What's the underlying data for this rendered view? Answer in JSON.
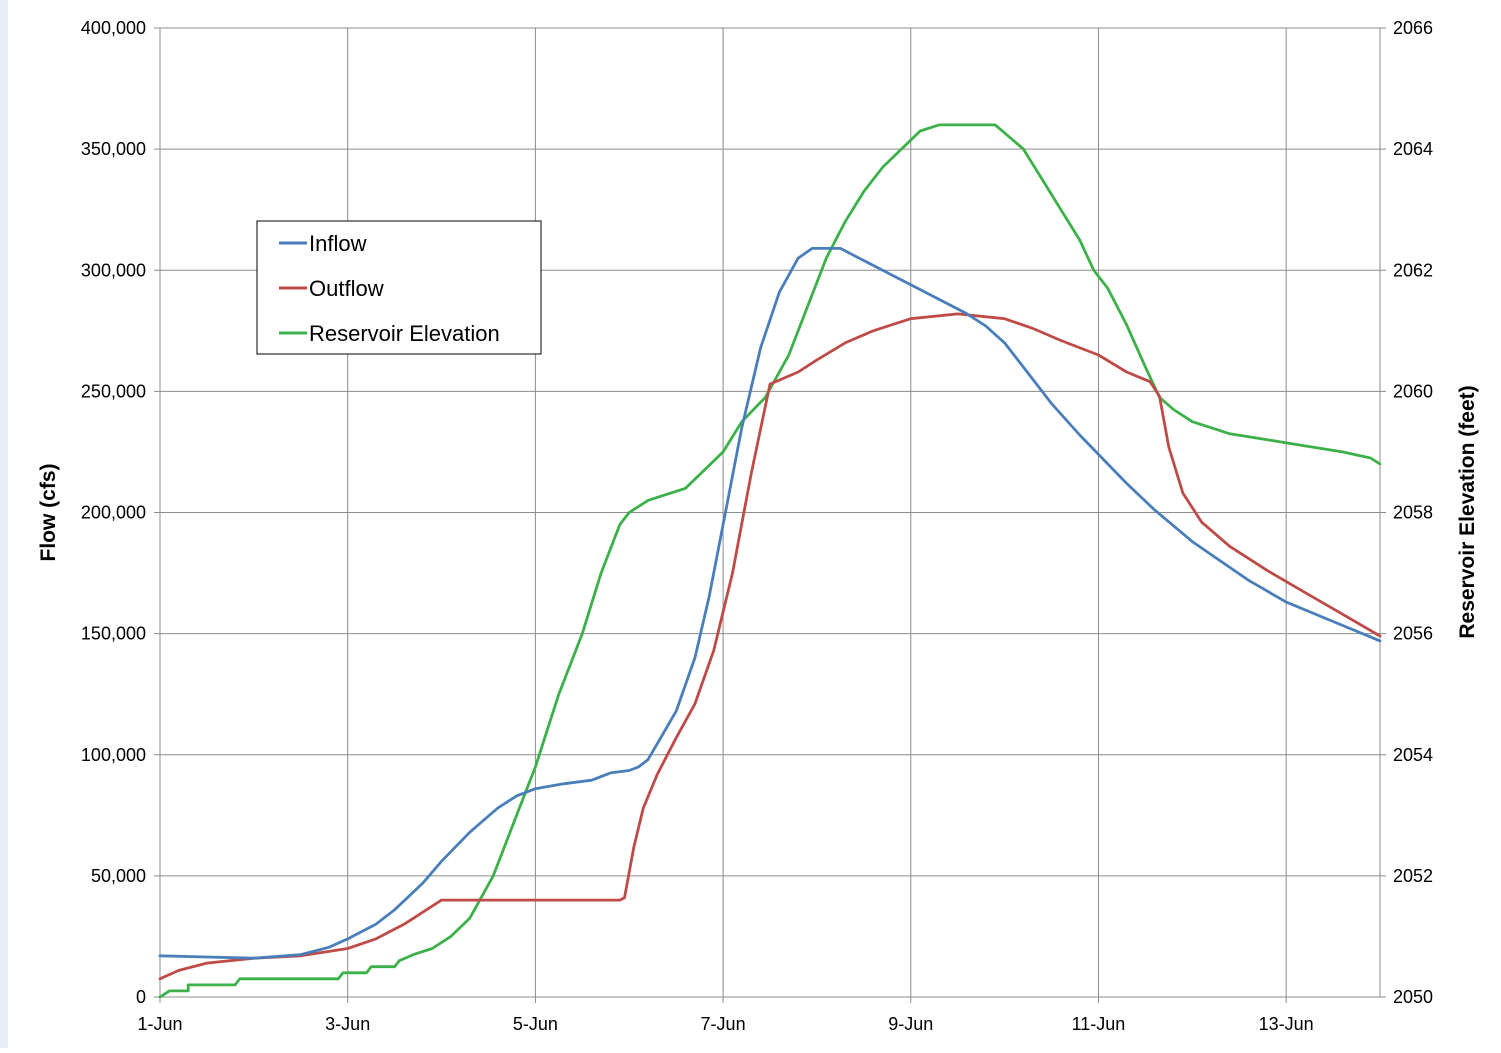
{
  "chart_data": {
    "type": "line",
    "title": "",
    "xlabel": "",
    "ylabel": "Flow (cfs)",
    "y2label": "Reservoir Elevation (feet)",
    "x_range": [
      1,
      14
    ],
    "ylim": [
      0,
      400000
    ],
    "y2lim": [
      2050,
      2066
    ],
    "x_ticks": [
      {
        "x": 1,
        "label": "1-Jun"
      },
      {
        "x": 3,
        "label": "3-Jun"
      },
      {
        "x": 5,
        "label": "5-Jun"
      },
      {
        "x": 7,
        "label": "7-Jun"
      },
      {
        "x": 9,
        "label": "9-Jun"
      },
      {
        "x": 11,
        "label": "11-Jun"
      },
      {
        "x": 13,
        "label": "13-Jun"
      }
    ],
    "y_ticks": [
      {
        "v": 0,
        "label": "0"
      },
      {
        "v": 50000,
        "label": "50,000"
      },
      {
        "v": 100000,
        "label": "100,000"
      },
      {
        "v": 150000,
        "label": "150,000"
      },
      {
        "v": 200000,
        "label": "200,000"
      },
      {
        "v": 250000,
        "label": "250,000"
      },
      {
        "v": 300000,
        "label": "300,000"
      },
      {
        "v": 350000,
        "label": "350,000"
      },
      {
        "v": 400000,
        "label": "400,000"
      }
    ],
    "y2_ticks": [
      {
        "v": 2050,
        "label": "2050"
      },
      {
        "v": 2052,
        "label": "2052"
      },
      {
        "v": 2054,
        "label": "2054"
      },
      {
        "v": 2056,
        "label": "2056"
      },
      {
        "v": 2058,
        "label": "2058"
      },
      {
        "v": 2060,
        "label": "2060"
      },
      {
        "v": 2062,
        "label": "2062"
      },
      {
        "v": 2064,
        "label": "2064"
      },
      {
        "v": 2066,
        "label": "2066"
      }
    ],
    "grid": true,
    "legend_position": "upper-left",
    "series": [
      {
        "name": "Inflow",
        "axis": "left",
        "color": "#4a7ebb",
        "points": [
          [
            1.0,
            17000
          ],
          [
            1.5,
            16500
          ],
          [
            2.0,
            16000
          ],
          [
            2.5,
            17500
          ],
          [
            2.8,
            20500
          ],
          [
            3.0,
            24000
          ],
          [
            3.3,
            30000
          ],
          [
            3.5,
            36000
          ],
          [
            3.8,
            47000
          ],
          [
            4.0,
            56000
          ],
          [
            4.3,
            68000
          ],
          [
            4.6,
            78000
          ],
          [
            4.8,
            83000
          ],
          [
            5.0,
            86000
          ],
          [
            5.3,
            88000
          ],
          [
            5.6,
            89500
          ],
          [
            5.8,
            92500
          ],
          [
            6.0,
            93500
          ],
          [
            6.1,
            95000
          ],
          [
            6.2,
            98000
          ],
          [
            6.35,
            108000
          ],
          [
            6.5,
            118000
          ],
          [
            6.7,
            140000
          ],
          [
            6.85,
            165000
          ],
          [
            7.0,
            195000
          ],
          [
            7.2,
            235000
          ],
          [
            7.4,
            268000
          ],
          [
            7.6,
            291000
          ],
          [
            7.8,
            305000
          ],
          [
            7.95,
            309000
          ],
          [
            8.1,
            309000
          ],
          [
            8.25,
            309000
          ],
          [
            8.4,
            306000
          ],
          [
            8.6,
            302000
          ],
          [
            8.8,
            298000
          ],
          [
            9.0,
            294000
          ],
          [
            9.3,
            288000
          ],
          [
            9.6,
            282000
          ],
          [
            9.8,
            277000
          ],
          [
            10.0,
            270000
          ],
          [
            10.2,
            260000
          ],
          [
            10.5,
            245000
          ],
          [
            10.8,
            232000
          ],
          [
            11.0,
            224000
          ],
          [
            11.3,
            212000
          ],
          [
            11.6,
            201000
          ],
          [
            12.0,
            188000
          ],
          [
            12.3,
            180000
          ],
          [
            12.6,
            172000
          ],
          [
            13.0,
            163000
          ],
          [
            13.5,
            155000
          ],
          [
            14.0,
            147000
          ]
        ]
      },
      {
        "name": "Outflow",
        "axis": "left",
        "color": "#be4b48",
        "points": [
          [
            1.0,
            7500
          ],
          [
            1.2,
            11000
          ],
          [
            1.5,
            14000
          ],
          [
            2.0,
            16000
          ],
          [
            2.5,
            17000
          ],
          [
            3.0,
            20000
          ],
          [
            3.3,
            24000
          ],
          [
            3.6,
            30000
          ],
          [
            3.8,
            35000
          ],
          [
            4.0,
            40000
          ],
          [
            5.0,
            40000
          ],
          [
            5.9,
            40000
          ],
          [
            5.95,
            41000
          ],
          [
            6.05,
            62000
          ],
          [
            6.15,
            78000
          ],
          [
            6.3,
            92000
          ],
          [
            6.5,
            107000
          ],
          [
            6.7,
            121000
          ],
          [
            6.9,
            143000
          ],
          [
            7.1,
            175000
          ],
          [
            7.3,
            216000
          ],
          [
            7.5,
            253000
          ],
          [
            7.8,
            258000
          ],
          [
            8.0,
            263000
          ],
          [
            8.3,
            270000
          ],
          [
            8.6,
            275000
          ],
          [
            9.0,
            280000
          ],
          [
            9.5,
            282000
          ],
          [
            10.0,
            280000
          ],
          [
            10.3,
            276000
          ],
          [
            10.6,
            271000
          ],
          [
            11.0,
            265000
          ],
          [
            11.3,
            258000
          ],
          [
            11.55,
            254000
          ],
          [
            11.65,
            248000
          ],
          [
            11.75,
            227000
          ],
          [
            11.9,
            208000
          ],
          [
            12.1,
            196000
          ],
          [
            12.4,
            186000
          ],
          [
            12.8,
            176000
          ],
          [
            13.2,
            167000
          ],
          [
            13.6,
            158000
          ],
          [
            14.0,
            149000
          ]
        ]
      },
      {
        "name": "Reservoir Elevation",
        "axis": "right",
        "color": "#3cb049",
        "points": [
          [
            1.0,
            2050.0
          ],
          [
            1.1,
            2050.1
          ],
          [
            1.3,
            2050.1
          ],
          [
            1.3,
            2050.2
          ],
          [
            1.8,
            2050.2
          ],
          [
            1.85,
            2050.3
          ],
          [
            2.4,
            2050.3
          ],
          [
            2.9,
            2050.3
          ],
          [
            2.95,
            2050.4
          ],
          [
            3.2,
            2050.4
          ],
          [
            3.25,
            2050.5
          ],
          [
            3.5,
            2050.5
          ],
          [
            3.55,
            2050.6
          ],
          [
            3.7,
            2050.7
          ],
          [
            3.9,
            2050.8
          ],
          [
            4.1,
            2051.0
          ],
          [
            4.3,
            2051.3
          ],
          [
            4.55,
            2052.0
          ],
          [
            4.8,
            2053.0
          ],
          [
            5.0,
            2053.8
          ],
          [
            5.25,
            2055.0
          ],
          [
            5.5,
            2056.0
          ],
          [
            5.7,
            2057.0
          ],
          [
            5.9,
            2057.8
          ],
          [
            6.0,
            2058.0
          ],
          [
            6.2,
            2058.2
          ],
          [
            6.4,
            2058.3
          ],
          [
            6.6,
            2058.4
          ],
          [
            6.8,
            2058.7
          ],
          [
            7.0,
            2059.0
          ],
          [
            7.2,
            2059.5
          ],
          [
            7.45,
            2059.9
          ],
          [
            7.7,
            2060.6
          ],
          [
            7.9,
            2061.4
          ],
          [
            8.1,
            2062.2
          ],
          [
            8.3,
            2062.8
          ],
          [
            8.5,
            2063.3
          ],
          [
            8.7,
            2063.7
          ],
          [
            8.9,
            2064.0
          ],
          [
            9.1,
            2064.3
          ],
          [
            9.3,
            2064.4
          ],
          [
            9.9,
            2064.4
          ],
          [
            10.05,
            2064.2
          ],
          [
            10.2,
            2064.0
          ],
          [
            10.4,
            2063.5
          ],
          [
            10.6,
            2063.0
          ],
          [
            10.8,
            2062.5
          ],
          [
            10.95,
            2062.0
          ],
          [
            11.1,
            2061.7
          ],
          [
            11.3,
            2061.1
          ],
          [
            11.5,
            2060.4
          ],
          [
            11.65,
            2059.9
          ],
          [
            11.8,
            2059.7
          ],
          [
            12.0,
            2059.5
          ],
          [
            12.2,
            2059.4
          ],
          [
            12.4,
            2059.3
          ],
          [
            12.8,
            2059.2
          ],
          [
            13.2,
            2059.1
          ],
          [
            13.6,
            2059.0
          ],
          [
            13.9,
            2058.9
          ],
          [
            14.0,
            2058.8
          ]
        ]
      }
    ]
  }
}
